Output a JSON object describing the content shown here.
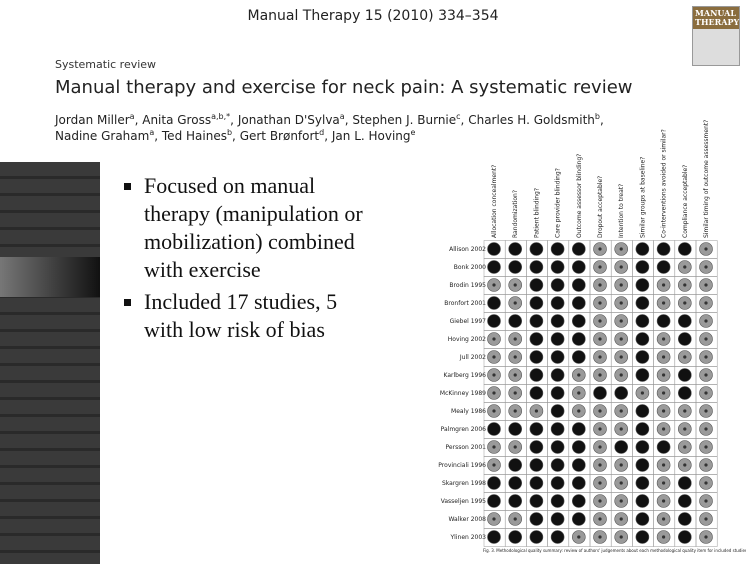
{
  "header": {
    "journal": "Manual Therapy 15 (2010) 334–354",
    "section": "Systematic review",
    "title": "Manual therapy and exercise for neck pain: A systematic review",
    "cover_title": "MANUAL THERAPY",
    "author_lines": [
      [
        {
          "name": "Jordan Miller",
          "sup": "a",
          "after": ","
        },
        {
          "name": "Anita Gross",
          "sup": "a,b,*",
          "after": ","
        },
        {
          "name": "Jonathan D'Sylva",
          "sup": "a",
          "after": ","
        },
        {
          "name": "Stephen J. Burnie",
          "sup": "c",
          "after": ","
        },
        {
          "name": "Charles H. Goldsmith",
          "sup": "b",
          "after": ","
        }
      ],
      [
        {
          "name": "Nadine Graham",
          "sup": "a",
          "after": ","
        },
        {
          "name": "Ted Haines",
          "sup": "b",
          "after": ","
        },
        {
          "name": "Gert Brønfort",
          "sup": "d",
          "after": ","
        },
        {
          "name": "Jan L. Hoving",
          "sup": "e"
        }
      ]
    ]
  },
  "bullets": [
    "Focused on manual therapy (manipulation or mobilization) combined with exercise",
    "Included 17 studies, 5 with low risk of bias"
  ],
  "table": {
    "columns": [
      "Allocation concealment?",
      "Randomization?",
      "Patient blinding?",
      "Care provider blinding?",
      "Outcome assessor blinding?",
      "Dropout acceptable?",
      "Intention to treat?",
      "Similar groups at baseline?",
      "Co-interventions avoided or similar?",
      "Compliance acceptable?",
      "Similar timing of outcome assessment?"
    ],
    "rows": [
      "Allison 2002",
      "Bonk 2000",
      "Brodin 1995",
      "Bronfort 2001",
      "Giebel 1997",
      "Hoving 2002",
      "Jull 2002",
      "Karlberg 1996",
      "McKinney 1989",
      "Mealy 1986",
      "Palmgren 2006",
      "Persson 2001",
      "Provinciali 1996",
      "Skargren 1998",
      "Vasseljen 1995",
      "Walker 2008",
      "Ylinen 2003"
    ],
    "ratings": [
      [
        1,
        1,
        1,
        1,
        1,
        0,
        0,
        1,
        1,
        1,
        0
      ],
      [
        1,
        1,
        1,
        1,
        1,
        0,
        0,
        1,
        1,
        0,
        0
      ],
      [
        0,
        0,
        1,
        1,
        1,
        0,
        0,
        1,
        0,
        0,
        0
      ],
      [
        1,
        0,
        1,
        1,
        1,
        0,
        0,
        1,
        0,
        0,
        0
      ],
      [
        1,
        1,
        1,
        1,
        1,
        0,
        0,
        1,
        1,
        1,
        0
      ],
      [
        0,
        0,
        1,
        1,
        1,
        0,
        0,
        1,
        0,
        1,
        0
      ],
      [
        0,
        0,
        1,
        1,
        1,
        0,
        0,
        1,
        0,
        0,
        0
      ],
      [
        0,
        0,
        1,
        1,
        0,
        0,
        0,
        1,
        0,
        1,
        0
      ],
      [
        0,
        0,
        1,
        1,
        0,
        1,
        1,
        0,
        0,
        1,
        0
      ],
      [
        0,
        0,
        0,
        1,
        0,
        0,
        0,
        1,
        0,
        0,
        0
      ],
      [
        1,
        1,
        1,
        1,
        1,
        0,
        0,
        1,
        0,
        0,
        0
      ],
      [
        0,
        0,
        1,
        1,
        1,
        0,
        1,
        1,
        1,
        0,
        0
      ],
      [
        0,
        1,
        1,
        1,
        1,
        0,
        0,
        1,
        0,
        0,
        0
      ],
      [
        1,
        1,
        1,
        1,
        1,
        0,
        0,
        1,
        0,
        1,
        0
      ],
      [
        1,
        1,
        1,
        1,
        1,
        0,
        0,
        1,
        0,
        1,
        0
      ],
      [
        0,
        0,
        1,
        1,
        1,
        0,
        0,
        1,
        0,
        1,
        0
      ],
      [
        1,
        1,
        1,
        1,
        0,
        0,
        0,
        1,
        0,
        1,
        0
      ]
    ],
    "caption": "Fig. 3. Methodological quality summary: review of authors' judgements about each methodological quality item for included studies."
  }
}
